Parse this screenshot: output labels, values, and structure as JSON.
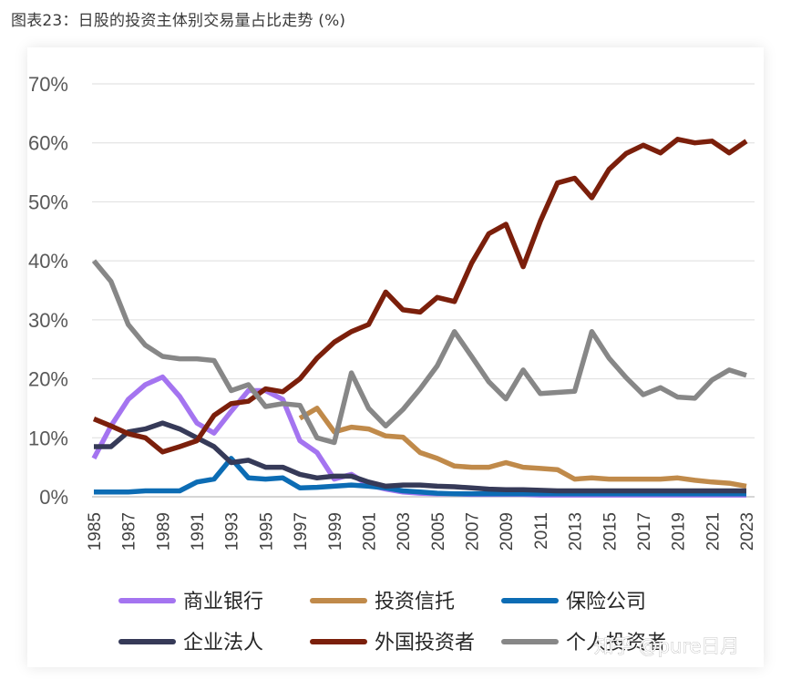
{
  "caption": "图表23：日股的投资主体别交易量占比走势 (%)",
  "watermark": "知乎 @pure日月",
  "chart_data": {
    "type": "line",
    "title": "图表23：日股的投资主体别交易量占比走势 (%)",
    "xlabel": "",
    "ylabel": "",
    "ylim": [
      0,
      70
    ],
    "y_ticks": [
      "0%",
      "10%",
      "20%",
      "30%",
      "40%",
      "50%",
      "60%",
      "70%"
    ],
    "x_tick_labels": [
      "1985",
      "1987",
      "1989",
      "1991",
      "1993",
      "1995",
      "1997",
      "1999",
      "2001",
      "2003",
      "2005",
      "2007",
      "2009",
      "2011",
      "2013",
      "2015",
      "2017",
      "2019",
      "2021",
      "2023"
    ],
    "x": [
      1985,
      1986,
      1987,
      1988,
      1989,
      1990,
      1991,
      1992,
      1993,
      1994,
      1995,
      1996,
      1997,
      1998,
      1999,
      2000,
      2001,
      2002,
      2003,
      2004,
      2005,
      2006,
      2007,
      2008,
      2009,
      2010,
      2011,
      2012,
      2013,
      2014,
      2015,
      2016,
      2017,
      2018,
      2019,
      2020,
      2021,
      2022,
      2023
    ],
    "grid": true,
    "legend_position": "bottom",
    "series": [
      {
        "name": "商业银行",
        "color": "#a474f0",
        "values": [
          6.5,
          12,
          16.5,
          19,
          20.3,
          17,
          12.5,
          10.8,
          14.5,
          18,
          18,
          16.5,
          9.5,
          7.5,
          3,
          3.8,
          2,
          1.3,
          0.8,
          0.6,
          0.5,
          0.5,
          0.4,
          0.4,
          0.4,
          0.4,
          0.3,
          0.3,
          0.3,
          0.3,
          0.3,
          0.3,
          0.3,
          0.3,
          0.3,
          0.3,
          0.3,
          0.3,
          0.3
        ]
      },
      {
        "name": "投资信托",
        "color": "#c08a4a",
        "values": [
          null,
          null,
          null,
          null,
          null,
          null,
          null,
          null,
          null,
          null,
          null,
          null,
          13.3,
          15,
          11,
          11.8,
          11.5,
          10.3,
          10.1,
          7.5,
          6.5,
          5.2,
          5,
          5,
          5.8,
          5,
          4.8,
          4.6,
          3,
          3.2,
          3,
          3,
          3,
          3,
          3.2,
          2.8,
          2.5,
          2.3,
          1.8
        ]
      },
      {
        "name": "保险公司",
        "color": "#0c6cb4",
        "values": [
          0.8,
          0.8,
          0.8,
          1,
          1,
          1,
          2.5,
          3,
          6.5,
          3.2,
          3,
          3.2,
          1.5,
          1.6,
          1.8,
          2,
          1.8,
          1.5,
          1,
          0.8,
          0.6,
          0.5,
          0.5,
          0.5,
          0.5,
          0.5,
          0.5,
          0.5,
          0.5,
          0.5,
          0.5,
          0.5,
          0.5,
          0.5,
          0.5,
          0.5,
          0.5,
          0.5,
          0.5
        ]
      },
      {
        "name": "企业法人",
        "color": "#363a58",
        "values": [
          8.5,
          8.5,
          11,
          11.5,
          12.5,
          11.5,
          10,
          8.5,
          5.8,
          6.2,
          5,
          5,
          3.8,
          3.2,
          3.5,
          3.5,
          2.5,
          1.8,
          2,
          2,
          1.8,
          1.7,
          1.5,
          1.3,
          1.2,
          1.2,
          1.1,
          1,
          1,
          1,
          1,
          1,
          1,
          1,
          1,
          1,
          1,
          1,
          1
        ]
      },
      {
        "name": "外国投资者",
        "color": "#7b1f0b",
        "values": [
          13.2,
          12,
          10.7,
          10,
          7.6,
          8.5,
          9.5,
          13.8,
          15.8,
          16.2,
          18.3,
          17.8,
          20,
          23.5,
          26.2,
          28,
          29.2,
          34.7,
          31.7,
          31.3,
          33.8,
          33.1,
          39.6,
          44.6,
          46.2,
          39,
          46.7,
          53.2,
          54,
          50.7,
          55.5,
          58.2,
          59.6,
          58.3,
          60.6,
          60,
          60.3,
          58.3,
          60.3
        ]
      },
      {
        "name": "个人投资者",
        "color": "#878787",
        "values": [
          40,
          36.5,
          29.2,
          25.7,
          23.8,
          23.4,
          23.4,
          23.1,
          18,
          19,
          15.3,
          15.8,
          15.5,
          10,
          9.2,
          21,
          15,
          12,
          14.8,
          18.3,
          22.2,
          28,
          23.8,
          19.5,
          16.6,
          21.5,
          17.5,
          17.7,
          17.9,
          28,
          23.5,
          20.2,
          17.3,
          18.5,
          16.9,
          16.7,
          19.8,
          21.5,
          20.6
        ]
      }
    ]
  }
}
